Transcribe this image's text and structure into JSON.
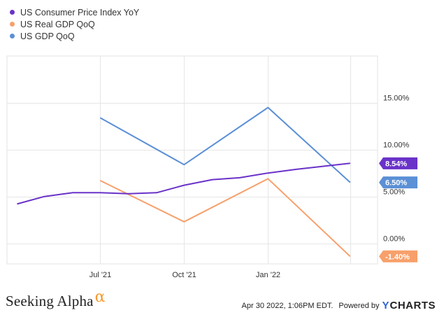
{
  "chart_data": {
    "type": "line",
    "x_ticks": [
      "Jul '21",
      "Oct '21",
      "Jan '22"
    ],
    "y_ticks": [
      "15.00%",
      "10.00%",
      "5.00%",
      "0.00%"
    ],
    "y_tick_values": [
      15,
      10,
      5,
      0
    ],
    "ylim": [
      -2.2,
      20
    ],
    "xlim": [
      "2021-03-20",
      "2022-04-30"
    ],
    "grid": true,
    "legend_position": "top-left",
    "series": [
      {
        "name": "US Consumer Price Index YoY",
        "color": "#6a32c9",
        "points": [
          {
            "x": "2021-03-31",
            "y": 4.2
          },
          {
            "x": "2021-04-30",
            "y": 5.0
          },
          {
            "x": "2021-05-31",
            "y": 5.4
          },
          {
            "x": "2021-06-30",
            "y": 5.4
          },
          {
            "x": "2021-07-31",
            "y": 5.3
          },
          {
            "x": "2021-08-31",
            "y": 5.4
          },
          {
            "x": "2021-09-30",
            "y": 6.2
          },
          {
            "x": "2021-10-31",
            "y": 6.8
          },
          {
            "x": "2021-11-30",
            "y": 7.0
          },
          {
            "x": "2021-12-31",
            "y": 7.5
          },
          {
            "x": "2022-01-31",
            "y": 7.9
          },
          {
            "x": "2022-03-31",
            "y": 8.54
          }
        ],
        "end_label": "8.54%"
      },
      {
        "name": "US Real GDP QoQ",
        "color": "#f7a06b",
        "points": [
          {
            "x": "2021-06-30",
            "y": 6.7
          },
          {
            "x": "2021-09-30",
            "y": 2.3
          },
          {
            "x": "2021-12-31",
            "y": 6.9
          },
          {
            "x": "2022-03-31",
            "y": -1.4
          }
        ],
        "end_label": "-1.40%"
      },
      {
        "name": "US GDP QoQ",
        "color": "#5b8fd6",
        "points": [
          {
            "x": "2021-06-30",
            "y": 13.4
          },
          {
            "x": "2021-09-30",
            "y": 8.4
          },
          {
            "x": "2021-12-31",
            "y": 14.5
          },
          {
            "x": "2022-03-31",
            "y": 6.5
          }
        ],
        "end_label": "6.50%"
      }
    ]
  },
  "footer": {
    "logo_text": "Seeking Alpha",
    "logo_symbol": "α",
    "date_text": "Apr 30 2022, 1:06PM EDT.",
    "powered_text": "Powered by",
    "brand_y": "Y",
    "brand_rest": "CHARTS"
  }
}
